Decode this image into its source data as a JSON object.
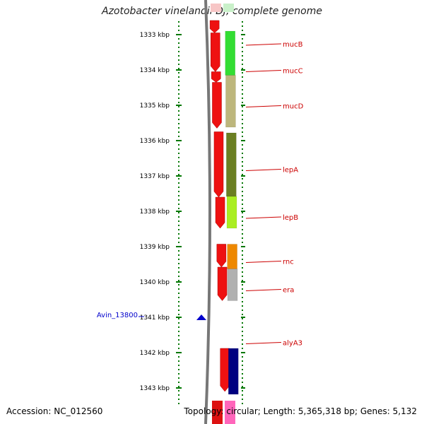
{
  "header": {
    "title": "Azotobacter vinelandii DJ, complete genome"
  },
  "footer": {
    "accession": "Accession: NC_012560",
    "topology": "Topology: circular; Length: 5,365,318 bp; Genes: 5,132"
  },
  "colors": {
    "label_red": "#cc0000",
    "tick_green": "#007700",
    "highlight_blue": "#0000cc",
    "backbone_gray": "#777777"
  },
  "ruler": {
    "unit": "kbp",
    "ticks": [
      {
        "label": "1333 kbp",
        "kbp": 1333
      },
      {
        "label": "1334 kbp",
        "kbp": 1334
      },
      {
        "label": "1335 kbp",
        "kbp": 1335
      },
      {
        "label": "1336 kbp",
        "kbp": 1336
      },
      {
        "label": "1337 kbp",
        "kbp": 1337
      },
      {
        "label": "1338 kbp",
        "kbp": 1338
      },
      {
        "label": "1339 kbp",
        "kbp": 1339
      },
      {
        "label": "1340 kbp",
        "kbp": 1340
      },
      {
        "label": "1341 kbp",
        "kbp": 1341
      },
      {
        "label": "1342 kbp",
        "kbp": 1342
      },
      {
        "label": "1343 kbp",
        "kbp": 1343
      }
    ]
  },
  "highlight": {
    "label": "Avin_13800",
    "kbp": 1341.0,
    "icon": "blue-triangle-marker-icon"
  },
  "genes": [
    {
      "name": "mucB",
      "start_kbp": 1332.9,
      "end_kbp": 1334.15,
      "color": "#33dd33"
    },
    {
      "name": "mucC",
      "start_kbp": 1334.15,
      "end_kbp": 1334.15,
      "color": "#33dd33"
    },
    {
      "name": "mucD",
      "start_kbp": 1334.15,
      "end_kbp": 1335.62,
      "color": "#bdb67c"
    },
    {
      "name": "lepA",
      "start_kbp": 1335.78,
      "end_kbp": 1337.58,
      "color": "#6b7f22"
    },
    {
      "name": "lepB",
      "start_kbp": 1337.58,
      "end_kbp": 1338.48,
      "color": "#aaee22"
    },
    {
      "name": "rnc",
      "start_kbp": 1338.93,
      "end_kbp": 1339.63,
      "color": "#ee8800"
    },
    {
      "name": "era",
      "start_kbp": 1339.63,
      "end_kbp": 1340.53,
      "color": "#b0b0b0"
    },
    {
      "name": "alyA3",
      "start_kbp": 1341.88,
      "end_kbp": 1343.18,
      "color": "#000080"
    }
  ],
  "gene_labels": [
    {
      "name": "mucB",
      "kbp": 1333.1
    },
    {
      "name": "mucC",
      "kbp": 1333.85
    },
    {
      "name": "mucD",
      "kbp": 1334.85
    },
    {
      "name": "lepA",
      "kbp": 1336.65
    },
    {
      "name": "lepB",
      "kbp": 1338.0
    },
    {
      "name": "rnc",
      "kbp": 1339.25
    },
    {
      "name": "era",
      "kbp": 1340.05
    },
    {
      "name": "alyA3",
      "kbp": 1341.55
    }
  ]
}
